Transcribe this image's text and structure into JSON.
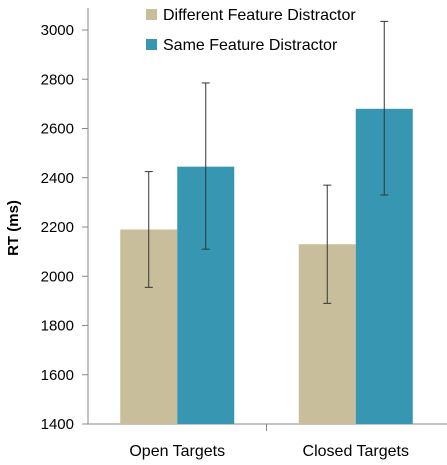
{
  "chart_data": {
    "type": "bar",
    "title": "",
    "xlabel": "",
    "ylabel": "RT (ms)",
    "ylim": [
      1400,
      3000
    ],
    "yticks": [
      1400,
      1600,
      1800,
      2000,
      2200,
      2400,
      2600,
      2800,
      3000
    ],
    "categories": [
      "Open Targets",
      "Closed Targets"
    ],
    "series": [
      {
        "name": "Different Feature Distractor",
        "color": "#c9be9b",
        "values": [
          2190,
          2130
        ],
        "error_low": [
          1955,
          1890
        ],
        "error_high": [
          2425,
          2370
        ]
      },
      {
        "name": "Same Feature Distractor",
        "color": "#3797b2",
        "values": [
          2445,
          2680
        ],
        "error_low": [
          2110,
          2330
        ],
        "error_high": [
          2785,
          3035
        ]
      }
    ],
    "legend_position": "top-right",
    "grid": false
  }
}
